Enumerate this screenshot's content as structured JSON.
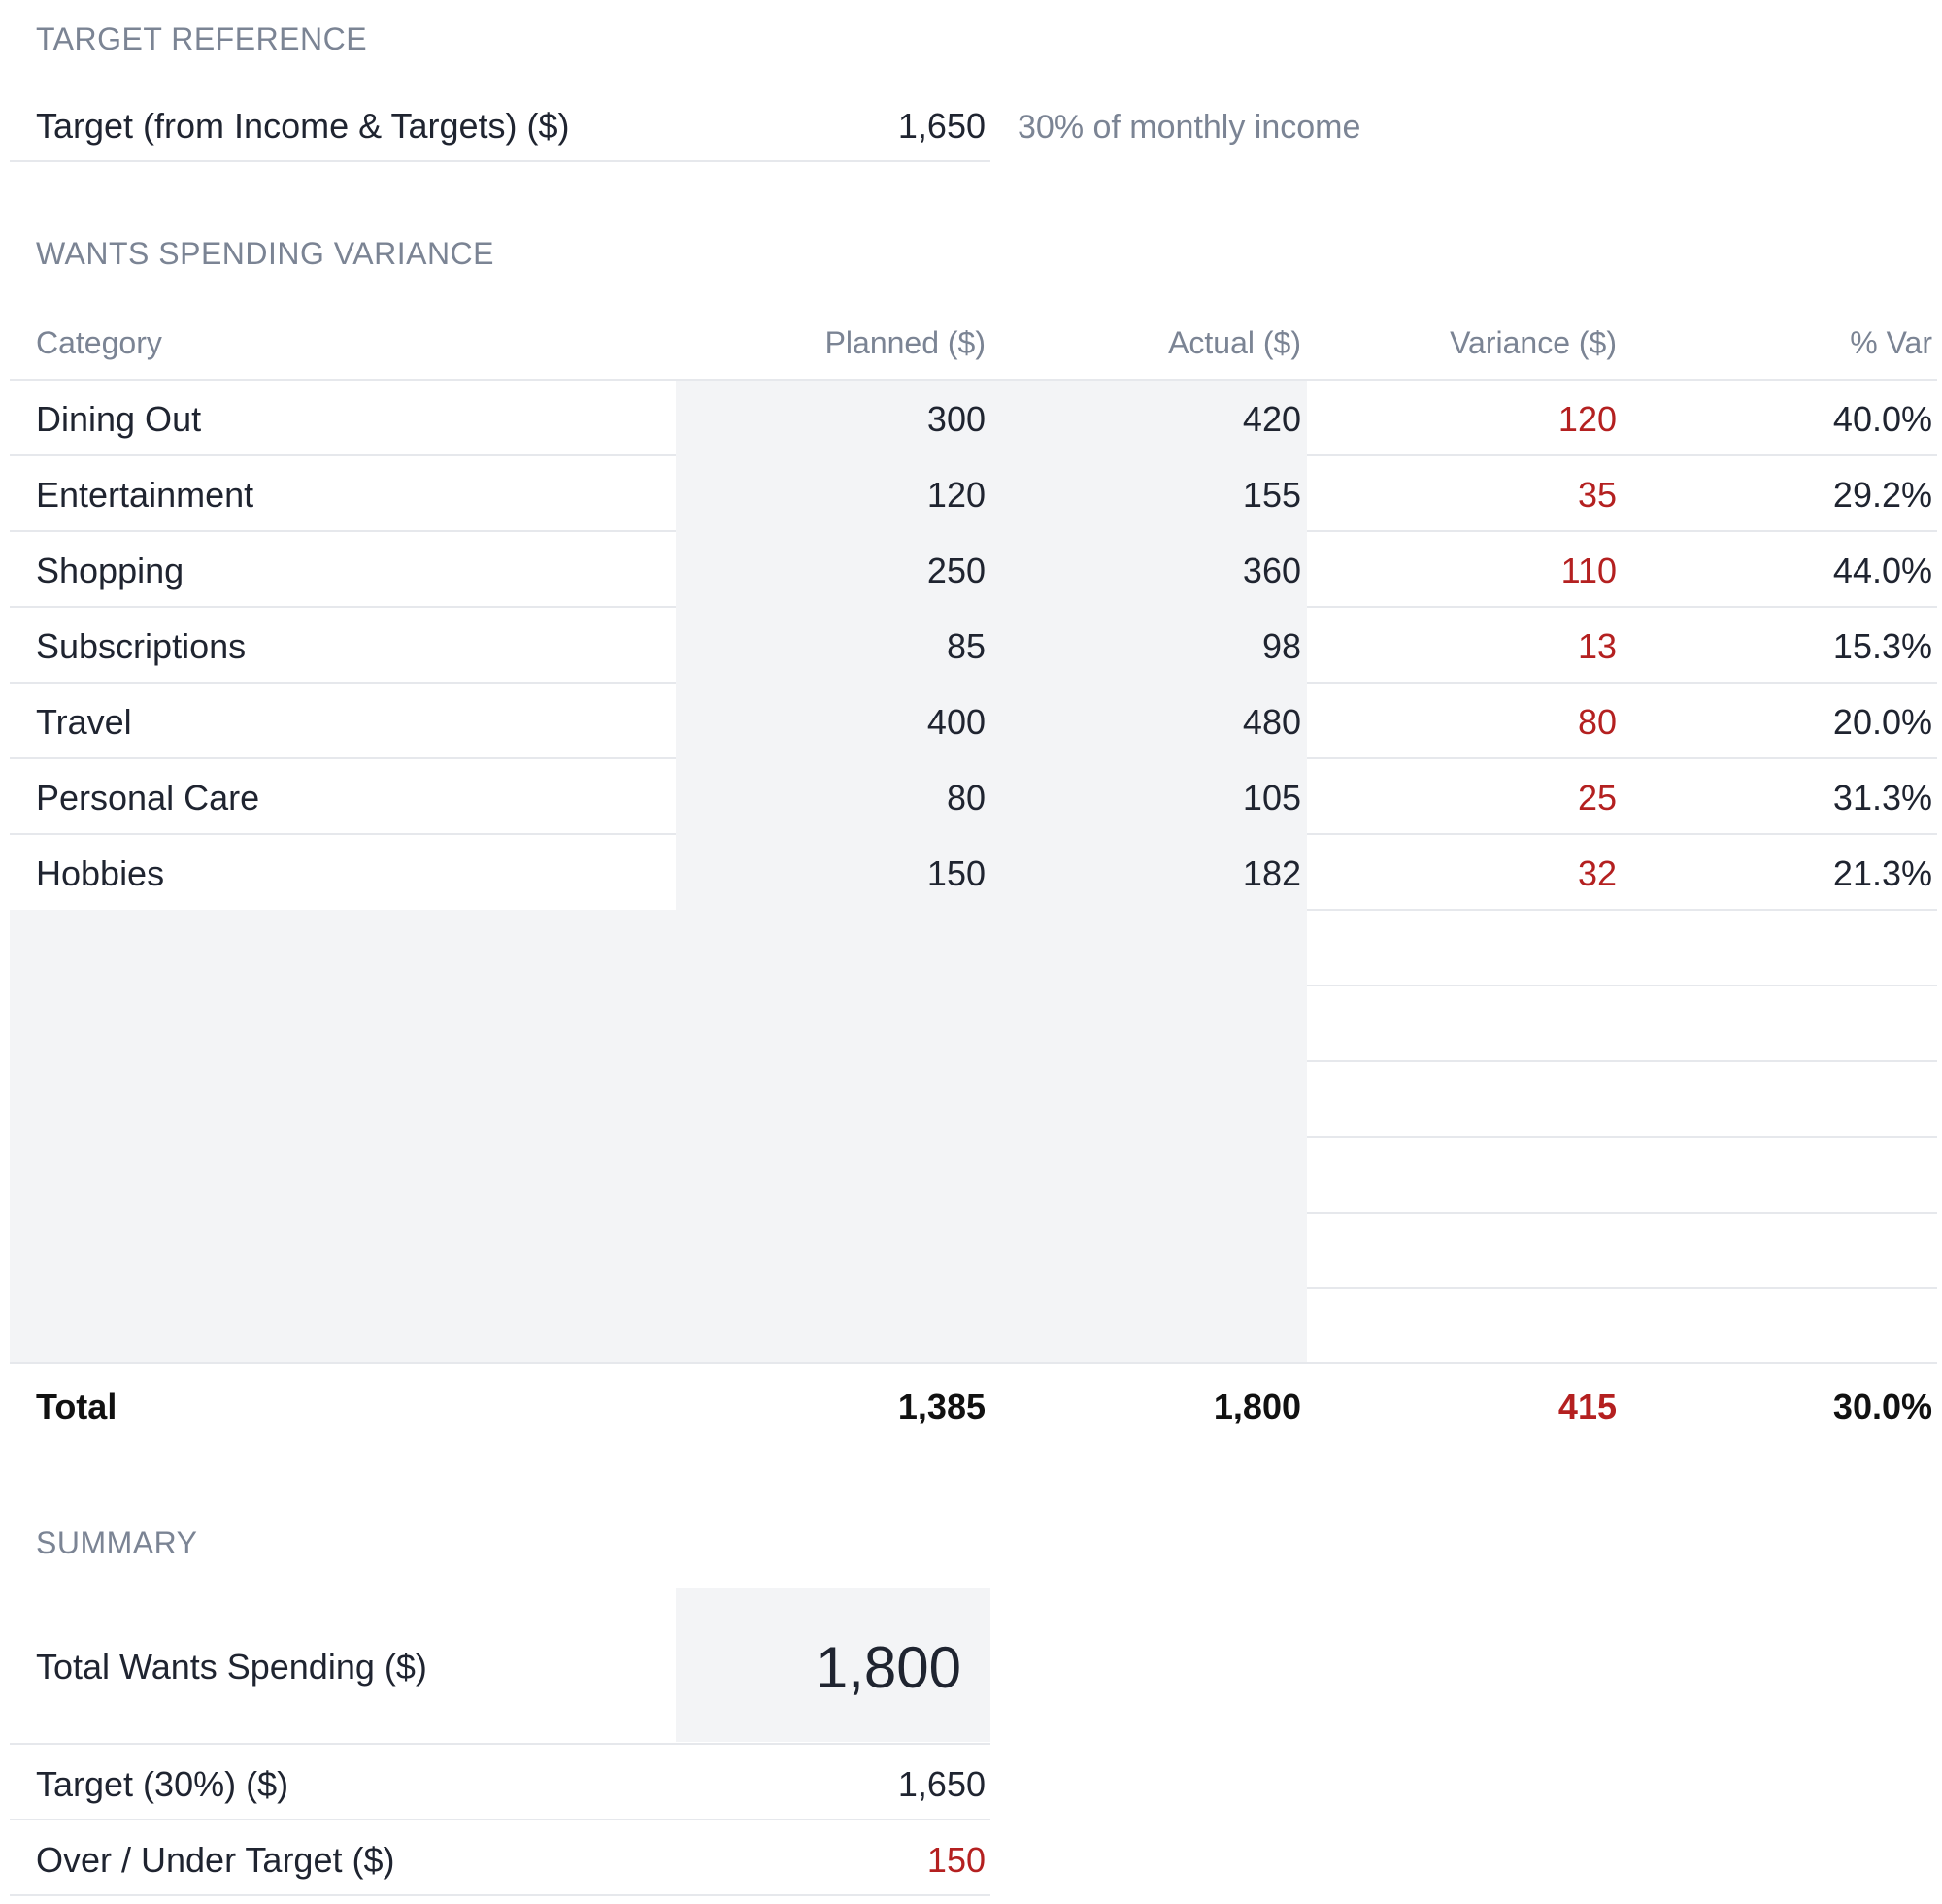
{
  "target_reference": {
    "section_label": "TARGET REFERENCE",
    "label": "Target (from Income & Targets) ($)",
    "value": "1,650",
    "note": "30% of monthly income"
  },
  "variance": {
    "section_label": "WANTS SPENDING VARIANCE",
    "columns": [
      "Category",
      "Planned ($)",
      "Actual ($)",
      "Variance ($)",
      "% Var"
    ],
    "rows": [
      {
        "category": "Dining Out",
        "planned": "300",
        "actual": "420",
        "variance": "120",
        "pct": "40.0%"
      },
      {
        "category": "Entertainment",
        "planned": "120",
        "actual": "155",
        "variance": "35",
        "pct": "29.2%"
      },
      {
        "category": "Shopping",
        "planned": "250",
        "actual": "360",
        "variance": "110",
        "pct": "44.0%"
      },
      {
        "category": "Subscriptions",
        "planned": "85",
        "actual": "98",
        "variance": "13",
        "pct": "15.3%"
      },
      {
        "category": "Travel",
        "planned": "400",
        "actual": "480",
        "variance": "80",
        "pct": "20.0%"
      },
      {
        "category": "Personal Care",
        "planned": "80",
        "actual": "105",
        "variance": "25",
        "pct": "31.3%"
      },
      {
        "category": "Hobbies",
        "planned": "150",
        "actual": "182",
        "variance": "32",
        "pct": "21.3%"
      }
    ],
    "total": {
      "label": "Total",
      "planned": "1,385",
      "actual": "1,800",
      "variance": "415",
      "pct": "30.0%"
    }
  },
  "summary": {
    "section_label": "SUMMARY",
    "total_label": "Total Wants Spending ($)",
    "total_value": "1,800",
    "target_label": "Target (30%) ($)",
    "target_value": "1,650",
    "over_label": "Over / Under Target ($)",
    "over_value": "150"
  }
}
